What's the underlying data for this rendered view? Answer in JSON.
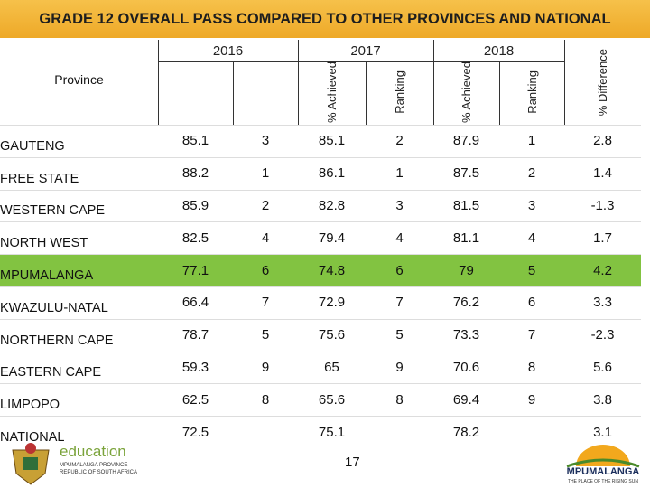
{
  "header": {
    "title": "GRADE 12 OVERALL PASS COMPARED TO OTHER PROVINCES AND NATIONAL"
  },
  "table": {
    "province_header": "Province",
    "years": [
      "2016",
      "2017",
      "2018"
    ],
    "subheaders": [
      "% Achieved",
      "Ranking",
      "% Achieved",
      "Ranking",
      "% Difference"
    ],
    "highlight_row": 4,
    "rows": [
      [
        "GAUTENG",
        85.1,
        3,
        85.1,
        2,
        87.9,
        1,
        2.8
      ],
      [
        "FREE STATE",
        88.2,
        1,
        86.1,
        1,
        87.5,
        2,
        1.4
      ],
      [
        "WESTERN CAPE",
        85.9,
        2,
        82.8,
        3,
        81.5,
        3,
        -1.3
      ],
      [
        "NORTH WEST",
        82.5,
        4,
        79.4,
        4,
        81.1,
        4,
        1.7
      ],
      [
        "MPUMALANGA",
        77.1,
        6,
        74.8,
        6,
        79,
        5,
        4.2
      ],
      [
        "KWAZULU-NATAL",
        66.4,
        7,
        72.9,
        7,
        76.2,
        6,
        3.3
      ],
      [
        "NORTHERN CAPE",
        78.7,
        5,
        75.6,
        5,
        73.3,
        7,
        -2.3
      ],
      [
        "EASTERN CAPE",
        59.3,
        9,
        65,
        9,
        70.6,
        8,
        5.6
      ],
      [
        "LIMPOPO",
        62.5,
        8,
        65.6,
        8,
        69.4,
        9,
        3.8
      ],
      [
        "NATIONAL",
        72.5,
        null,
        75.1,
        null,
        78.2,
        null,
        3.1
      ]
    ]
  },
  "footer": {
    "page_number": "17",
    "left_logo_text": "education",
    "left_logo_line1": "MPUMALANGA PROVINCE",
    "left_logo_line2": "REPUBLIC OF SOUTH AFRICA",
    "right_logo_text": "MPUMALANGA",
    "right_logo_tagline": "THE PLACE OF THE RISING SUN"
  }
}
